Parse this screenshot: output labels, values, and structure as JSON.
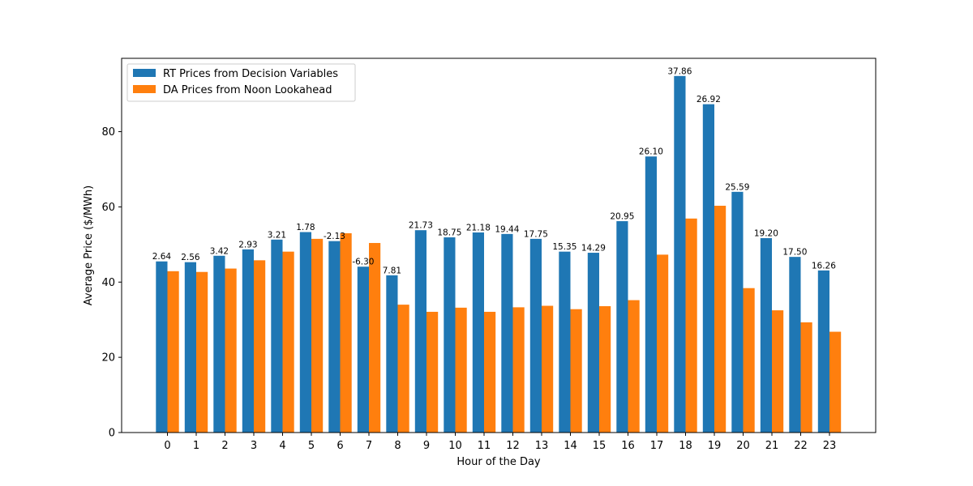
{
  "chart_data": {
    "type": "bar",
    "xlabel": "Hour of the Day",
    "ylabel": "Average Price ($/MWh)",
    "ylim": [
      0,
      99.5
    ],
    "yticks": [
      0,
      20,
      40,
      60,
      80
    ],
    "categories": [
      "0",
      "1",
      "2",
      "3",
      "4",
      "5",
      "6",
      "7",
      "8",
      "9",
      "10",
      "11",
      "12",
      "13",
      "14",
      "15",
      "16",
      "17",
      "18",
      "19",
      "20",
      "21",
      "22",
      "23"
    ],
    "series": [
      {
        "name": "RT Prices from Decision Variables",
        "color": "#1f77b4",
        "values": [
          45.5,
          45.3,
          47.0,
          48.7,
          51.3,
          53.3,
          50.9,
          44.1,
          41.8,
          53.8,
          51.9,
          53.2,
          52.8,
          51.5,
          48.1,
          47.8,
          56.2,
          73.4,
          94.8,
          87.3,
          64.0,
          51.7,
          46.7,
          43.1
        ],
        "labels": [
          "2.64",
          "2.56",
          "3.42",
          "2.93",
          "3.21",
          "1.78",
          "-2.13",
          "-6.30",
          "7.81",
          "21.73",
          "18.75",
          "21.18",
          "19.44",
          "17.75",
          "15.35",
          "14.29",
          "20.95",
          "26.10",
          "37.86",
          "26.92",
          "25.59",
          "19.20",
          "17.50",
          "16.26"
        ]
      },
      {
        "name": "DA Prices from Noon Lookahead",
        "color": "#ff7f0e",
        "values": [
          42.9,
          42.7,
          43.6,
          45.8,
          48.1,
          51.5,
          53.0,
          50.4,
          34.0,
          32.1,
          33.2,
          32.1,
          33.3,
          33.7,
          32.8,
          33.6,
          35.2,
          47.3,
          56.9,
          60.3,
          38.4,
          32.5,
          29.3,
          26.8
        ]
      }
    ],
    "legend": "top-left",
    "grid": false
  }
}
